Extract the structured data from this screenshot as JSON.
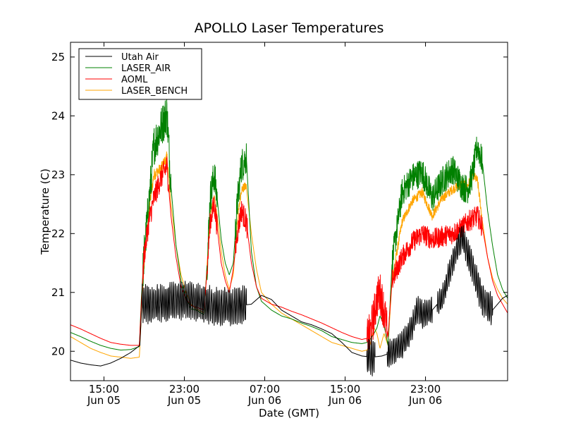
{
  "chart_data": {
    "type": "line",
    "title": "APOLLO Laser Temperatures",
    "xlabel": "Date (GMT)",
    "ylabel": "Temperature (C)",
    "xlim_hours": [
      0,
      43.5
    ],
    "ylim": [
      19.5,
      25.25
    ],
    "x_unit": "hours since Jun 05 11:40 GMT",
    "grid": false,
    "legend_position": "top-left",
    "x_ticks": [
      {
        "hour": 3.33,
        "time": "15:00",
        "date": "Jun 05"
      },
      {
        "hour": 11.33,
        "time": "23:00",
        "date": "Jun 05"
      },
      {
        "hour": 19.33,
        "time": "07:00",
        "date": "Jun 06"
      },
      {
        "hour": 27.33,
        "time": "15:00",
        "date": "Jun 06"
      },
      {
        "hour": 35.33,
        "time": "23:00",
        "date": "Jun 06"
      }
    ],
    "y_ticks": [
      {
        "value": 20,
        "label": "20"
      },
      {
        "value": 21,
        "label": "21"
      },
      {
        "value": 22,
        "label": "22"
      },
      {
        "value": 23,
        "label": "23"
      },
      {
        "value": 24,
        "label": "24"
      },
      {
        "value": 25,
        "label": "25"
      }
    ],
    "series": [
      {
        "name": "Utah Air",
        "color": "#000000",
        "x": [
          0,
          1,
          2,
          3,
          4,
          5,
          6,
          6.9,
          7.1,
          8,
          9,
          10,
          11,
          12,
          13,
          14,
          15,
          16,
          17,
          18,
          19,
          20,
          21,
          22,
          23,
          24,
          25,
          26,
          27,
          28,
          29,
          30,
          31,
          32,
          33,
          34,
          34.5,
          35,
          36,
          37,
          38,
          39,
          40,
          41,
          42,
          43,
          43.5
        ],
        "values": [
          19.85,
          19.8,
          19.77,
          19.75,
          19.8,
          19.88,
          19.98,
          20.1,
          20.8,
          20.78,
          20.8,
          20.82,
          20.85,
          20.85,
          20.8,
          20.76,
          20.73,
          20.75,
          20.78,
          20.8,
          20.95,
          20.88,
          20.7,
          20.6,
          20.5,
          20.45,
          20.38,
          20.3,
          20.15,
          19.98,
          19.92,
          19.9,
          19.92,
          19.98,
          20.1,
          20.4,
          20.7,
          20.62,
          20.7,
          20.9,
          21.5,
          21.95,
          21.4,
          20.85,
          20.7,
          20.9,
          20.95
        ],
        "noise": [
          [
            7.1,
            17.5,
            0.3
          ],
          [
            29.5,
            30.3,
            0.3
          ],
          [
            31.5,
            36,
            0.22
          ],
          [
            36.5,
            38.5,
            0.2
          ],
          [
            38.5,
            39.5,
            0.25
          ],
          [
            39.5,
            42,
            0.25
          ]
        ]
      },
      {
        "name": "LASER_AIR",
        "color": "#008000",
        "x": [
          0,
          1,
          2,
          3,
          4,
          5,
          6,
          6.85,
          7.05,
          7.3,
          7.8,
          8.3,
          9,
          9.6,
          10,
          10.5,
          11,
          11.5,
          12,
          12.5,
          13,
          13.3,
          13.6,
          13.9,
          14.1,
          14.3,
          14.6,
          15,
          15.4,
          15.8,
          16.2,
          16.6,
          17,
          17.5,
          18,
          18.5,
          19,
          20,
          21,
          22,
          23,
          24,
          25,
          26,
          27,
          28,
          29,
          29.5,
          29.8,
          30.2,
          30.5,
          30.8,
          31.2,
          31.6,
          32,
          33,
          34,
          35,
          36,
          37,
          38,
          39,
          39.5,
          40,
          40.5,
          41,
          41.5,
          42,
          42.5,
          43,
          43.5
        ],
        "values": [
          20.32,
          20.25,
          20.17,
          20.1,
          20.05,
          20.02,
          20.03,
          20.08,
          20.9,
          21.6,
          22.5,
          23.5,
          23.8,
          24.05,
          22.8,
          21.8,
          21.2,
          20.9,
          20.72,
          20.7,
          20.65,
          20.62,
          21.5,
          22.6,
          22.8,
          23.0,
          22.6,
          21.9,
          21.5,
          21.3,
          21.5,
          22.5,
          23.15,
          23.3,
          21.7,
          21.1,
          20.85,
          20.7,
          20.6,
          20.55,
          20.48,
          20.42,
          20.35,
          20.25,
          20.2,
          20.15,
          20.13,
          20.15,
          20.2,
          20.3,
          20.4,
          20.6,
          20.45,
          20.1,
          21.5,
          22.7,
          22.95,
          23.05,
          22.6,
          22.9,
          23.1,
          22.8,
          22.75,
          23.0,
          23.5,
          23.2,
          22.4,
          21.8,
          21.3,
          21.05,
          20.9
        ],
        "noise": [
          [
            7.2,
            10,
            0.35
          ],
          [
            13.6,
            14.6,
            0.3
          ],
          [
            16.4,
            17.5,
            0.3
          ],
          [
            32,
            41,
            0.25
          ]
        ]
      },
      {
        "name": "AOML",
        "color": "#ff0000",
        "x": [
          0,
          1,
          2,
          3,
          4,
          5,
          6,
          6.85,
          7.05,
          7.3,
          7.8,
          8.3,
          9,
          9.6,
          10,
          10.5,
          11,
          11.5,
          12,
          12.5,
          13,
          13.3,
          13.6,
          13.9,
          14.1,
          14.3,
          14.6,
          15,
          15.4,
          15.8,
          16.2,
          16.6,
          17,
          17.5,
          18,
          18.5,
          19,
          20,
          21,
          22,
          23,
          24,
          25,
          26,
          27,
          28,
          29,
          29.5,
          29.8,
          30.2,
          30.5,
          30.8,
          31.2,
          31.6,
          32,
          33,
          34,
          35,
          36,
          37,
          38,
          39,
          39.5,
          40,
          40.5,
          41,
          41.5,
          42,
          42.5,
          43,
          43.5
        ],
        "values": [
          20.45,
          20.38,
          20.3,
          20.22,
          20.15,
          20.12,
          20.1,
          20.1,
          20.8,
          21.6,
          22.2,
          22.6,
          22.95,
          23.15,
          22.3,
          21.6,
          21.1,
          20.88,
          20.78,
          20.75,
          20.72,
          20.7,
          21.4,
          22.2,
          22.35,
          22.5,
          22.1,
          21.5,
          21.2,
          21.0,
          21.4,
          22.0,
          22.4,
          22.2,
          21.5,
          21.1,
          20.9,
          20.8,
          20.75,
          20.68,
          20.62,
          20.55,
          20.48,
          20.4,
          20.32,
          20.25,
          20.2,
          20.22,
          20.3,
          20.6,
          20.9,
          21.0,
          20.7,
          20.25,
          21.2,
          21.6,
          21.85,
          22.0,
          21.9,
          21.95,
          22.0,
          22.1,
          22.2,
          22.25,
          22.3,
          22.1,
          21.6,
          21.2,
          20.95,
          20.8,
          20.65
        ],
        "noise": [
          [
            7.2,
            9.8,
            0.2
          ],
          [
            13.6,
            14.6,
            0.2
          ],
          [
            16.4,
            17.6,
            0.2
          ],
          [
            29.5,
            31.5,
            0.35
          ],
          [
            32,
            41,
            0.18
          ]
        ]
      },
      {
        "name": "LASER_BENCH",
        "color": "#ffa500",
        "x": [
          0,
          1,
          2,
          3,
          4,
          5,
          6,
          6.85,
          7.05,
          7.3,
          7.8,
          8.3,
          9,
          9.6,
          10,
          10.5,
          11,
          11.5,
          12,
          12.5,
          13,
          13.3,
          13.6,
          13.9,
          14.1,
          14.3,
          14.6,
          15,
          15.4,
          15.8,
          16.2,
          16.6,
          17,
          17.5,
          18,
          18.5,
          19,
          20,
          21,
          22,
          23,
          24,
          25,
          26,
          27,
          28,
          29,
          29.5,
          29.8,
          30.2,
          30.5,
          30.8,
          31.2,
          31.6,
          32,
          33,
          34,
          35,
          36,
          37,
          38,
          39,
          39.5,
          40,
          40.5,
          41,
          41.5,
          42,
          42.5,
          43,
          43.5
        ],
        "values": [
          20.25,
          20.15,
          20.05,
          19.98,
          19.92,
          19.9,
          19.88,
          19.9,
          20.6,
          21.4,
          22.4,
          23.0,
          23.1,
          23.3,
          22.5,
          21.8,
          21.3,
          21.0,
          20.8,
          20.72,
          20.68,
          20.65,
          21.5,
          22.3,
          22.5,
          22.65,
          22.3,
          21.7,
          21.3,
          21.05,
          21.3,
          22.2,
          22.75,
          22.8,
          22.0,
          21.4,
          21.0,
          20.8,
          20.65,
          20.55,
          20.45,
          20.35,
          20.25,
          20.15,
          20.1,
          20.05,
          20.0,
          20.02,
          20.1,
          20.4,
          20.3,
          20.05,
          20.3,
          20.1,
          21.2,
          22.2,
          22.55,
          22.7,
          22.3,
          22.6,
          22.75,
          22.85,
          22.8,
          23.0,
          22.9,
          22.2,
          21.6,
          21.25,
          21.05,
          20.9,
          20.8
        ],
        "noise": [
          [
            7.2,
            9.8,
            0.1
          ],
          [
            16.4,
            17.5,
            0.08
          ],
          [
            32,
            41,
            0.08
          ]
        ]
      }
    ]
  }
}
